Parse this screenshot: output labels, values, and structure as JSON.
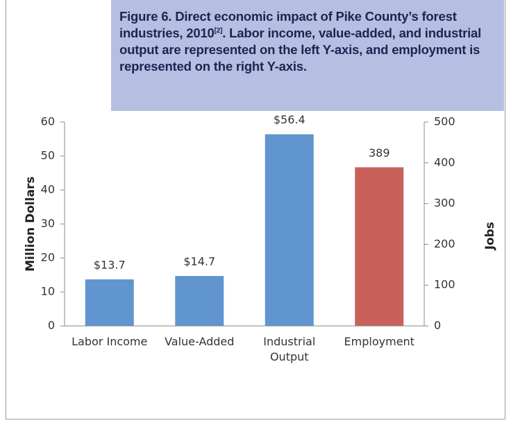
{
  "chart_data": {
    "type": "bar",
    "title": [
      "Figure 6. Direct economic impact of Pike County’s forest industries, 2010",
      "[2]",
      ". Labor income, value-added, and industrial output are represented on the left Y-axis, and employment is represented on the right Y-axis."
    ],
    "y_label": "Million Dollars",
    "y2_label": "Jobs",
    "categories": [
      "Labor Income",
      "Value-Added",
      "Industrial Output",
      "Employment"
    ],
    "series": [
      {
        "color": "#6095cf",
        "values": [
          13.7,
          14.7,
          56.4,
          null
        ],
        "value_labels": [
          "$13.7",
          "$14.7",
          "$56.4",
          null
        ]
      },
      {
        "color": "#c9605a",
        "axis": "y2",
        "values": [
          null,
          null,
          null,
          389
        ]
      }
    ],
    "ylim": [
      0,
      60
    ],
    "yticks": [
      0,
      10,
      20,
      30,
      40,
      50,
      60
    ],
    "y2lim": [
      0,
      500
    ],
    "y2ticks": [
      0,
      100,
      200,
      300,
      400,
      500
    ]
  }
}
